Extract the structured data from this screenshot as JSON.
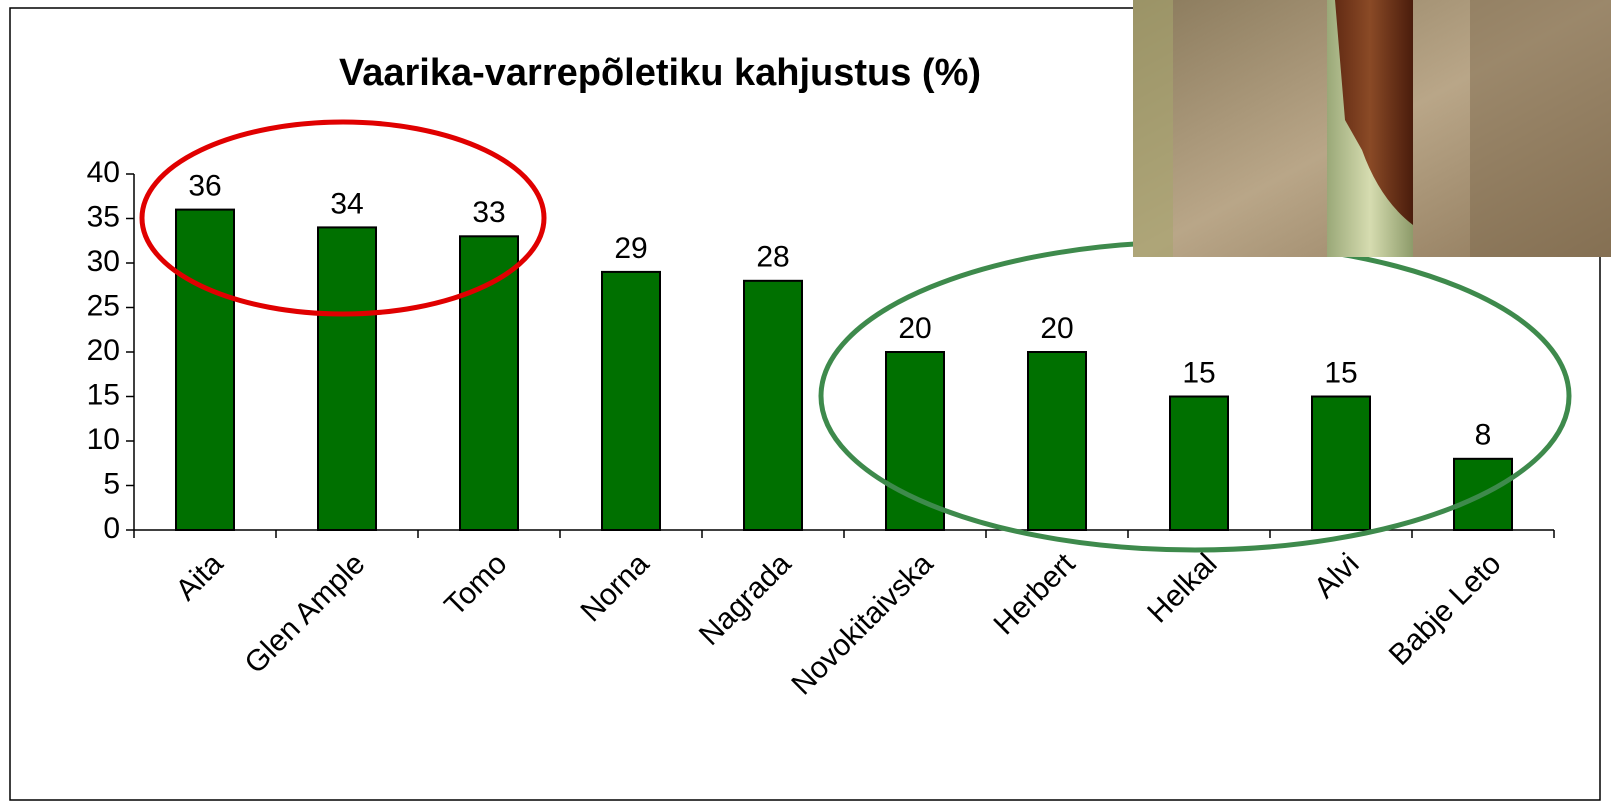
{
  "chart_data": {
    "type": "bar",
    "title": "Vaarika-varrepõletiku kahjustus (%)",
    "categories": [
      "Aita",
      "Glen Ample",
      "Tomo",
      "Norna",
      "Nagrada",
      "Novokitaivska",
      "Herbert",
      "Helkal",
      "Alvi",
      "Babje Leto"
    ],
    "values": [
      36,
      34,
      33,
      29,
      28,
      20,
      20,
      15,
      15,
      8
    ],
    "color": "#007000",
    "ylim": [
      0,
      40
    ],
    "yticks": [
      0,
      5,
      10,
      15,
      20,
      25,
      30,
      35,
      40
    ],
    "grid": false
  }
}
